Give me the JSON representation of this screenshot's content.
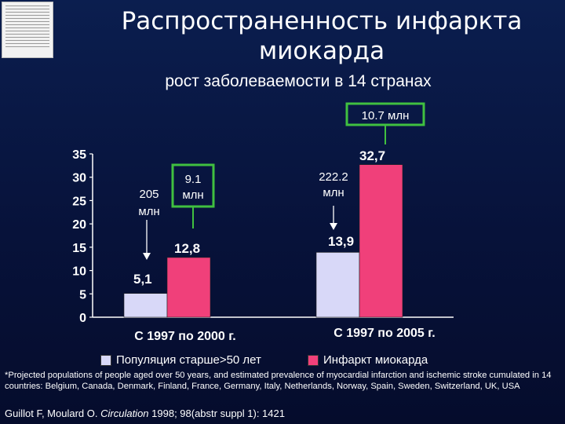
{
  "slide": {
    "title": "Распространенность инфаркта миокарда",
    "subtitle": "рост заболеваемости в 14 странах",
    "footnote": "*Projected populations of people aged over 50 years, and estimated prevalence of myocardial infarction and ischemic stroke cumulated in 14 countries: Belgium, Canada, Denmark, Finland, France, Germany, Italy, Netherlands, Norway, Spain, Sweden, Switzerland, UK, USA",
    "citation_authors": "Guillot F, Moulard O. ",
    "citation_journal": "Circulation",
    "citation_rest": " 1998; 98(abstr suppl 1): 1421"
  },
  "chart_data": {
    "type": "bar",
    "categories": [
      "С 1997 по 2000 г.",
      "С 1997 по 2005 г."
    ],
    "series": [
      {
        "name": "Популяция старше>50 лет",
        "values": [
          5.1,
          13.9
        ],
        "labels": [
          "5,1",
          "13,9"
        ],
        "color": "#d8d8f8"
      },
      {
        "name": "Инфаркт миокарда",
        "values": [
          12.8,
          32.7
        ],
        "labels": [
          "12,8",
          "32,7"
        ],
        "color": "#f0407a"
      }
    ],
    "ylim": [
      0,
      35
    ],
    "yticks": [
      0,
      5,
      10,
      15,
      20,
      25,
      30,
      35
    ],
    "annotations": [
      {
        "text": "205 млн",
        "target": "series-0-cat-0"
      },
      {
        "text": "9.1 млн",
        "target": "series-1-cat-0",
        "boxed": true
      },
      {
        "text": "222.2 млн",
        "target": "series-0-cat-1"
      },
      {
        "text": "10.7 млн",
        "target": "series-1-cat-1",
        "boxed": true
      }
    ],
    "highlight_color": "#40c040",
    "grid": false,
    "legend": "bottom"
  }
}
